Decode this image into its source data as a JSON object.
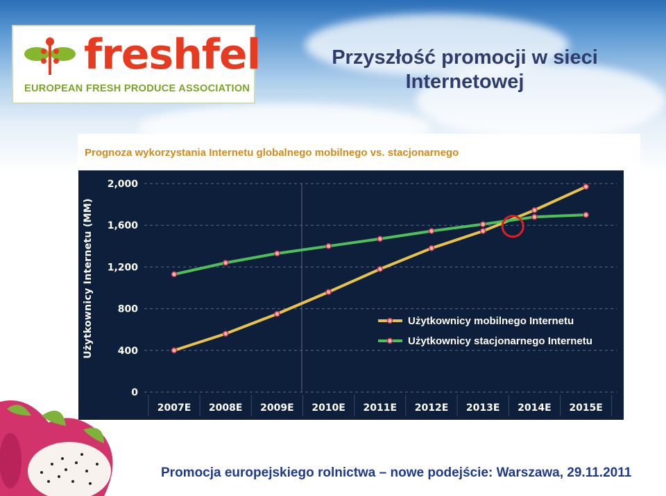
{
  "logo": {
    "word": "freshfel",
    "tagline": "EUROPEAN FRESH PRODUCE ASSOCIATION"
  },
  "slide_title": "Przyszłość promocji w sieci Internetowej",
  "chart_subtitle": "Prognoza wykorzystania Internetu globalnego mobilnego vs. stacjonarnego",
  "footer": "Promocja europejskiego rolnictwa – nowe podejście: Warszawa, 29.11.2011",
  "colors": {
    "chart_bg": "#0e1f3b",
    "mobile_line": "#e8c24a",
    "desktop_line": "#4fbf5a",
    "highlight_circle": "#e02020",
    "subtitle": "#d18a1b",
    "footer": "#1e3a8a"
  },
  "chart_data": {
    "type": "line",
    "ylabel": "Użytkownicy Internetu (MM)",
    "xlabel": "",
    "categories": [
      "2007E",
      "2008E",
      "2009E",
      "2010E",
      "2011E",
      "2012E",
      "2013E",
      "2014E",
      "2015E"
    ],
    "yticks": [
      "0",
      "400",
      "800",
      "1,200",
      "1,600",
      "2,000"
    ],
    "ylim": [
      0,
      2000
    ],
    "grid": "dashed horizontal",
    "legend_position": "inside-right",
    "series": [
      {
        "name": "Użytkownicy mobilnego Internetu",
        "values": [
          400,
          560,
          750,
          960,
          1180,
          1380,
          1545,
          1745,
          1970
        ]
      },
      {
        "name": "Użytkownicy stacjonarnego Internetu",
        "values": [
          1130,
          1240,
          1330,
          1400,
          1470,
          1545,
          1610,
          1680,
          1700
        ]
      }
    ],
    "annotation": "crossover circle near 2014E"
  }
}
